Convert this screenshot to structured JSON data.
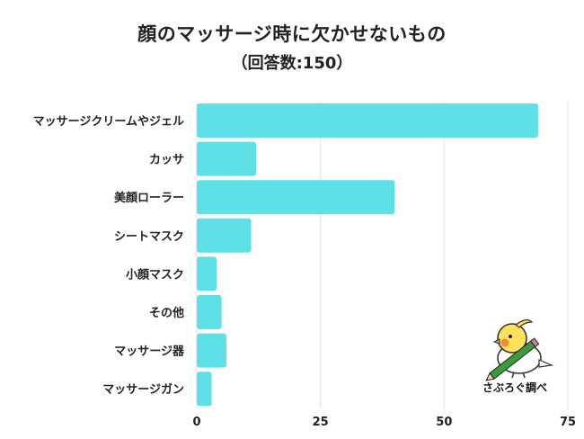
{
  "title": "顔のマッサージ時に欠かせないもの",
  "subtitle": "（回答数:150）",
  "watermark_text": "さぶろぐ調べ",
  "colors": {
    "bar": "#5ee1e6",
    "grid": "#e2e2e2"
  },
  "chart_data": {
    "type": "bar",
    "orientation": "horizontal",
    "categories": [
      "マッサージクリームやジェル",
      "カッサ",
      "美顔ローラー",
      "シートマスク",
      "小顔マスク",
      "その他",
      "マッサージ器",
      "マッサージガン"
    ],
    "values": [
      69,
      12,
      40,
      11,
      4,
      5,
      6,
      3
    ],
    "xlim": [
      0,
      75
    ],
    "xticks": [
      "0",
      "25",
      "50",
      "75"
    ],
    "grid": true
  }
}
